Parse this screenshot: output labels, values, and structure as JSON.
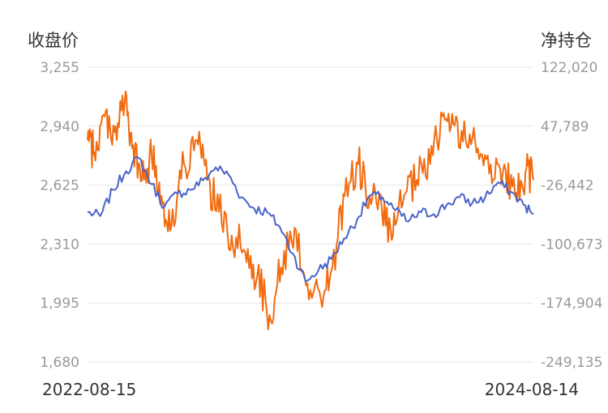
{
  "chart_data": {
    "type": "line",
    "left_axis_title": "收盘价",
    "right_axis_title": "净持仓",
    "x_range": [
      "2022-08-15",
      "2024-08-14"
    ],
    "y_left_ticks": [
      "3,255",
      "2,940",
      "2,625",
      "2,310",
      "1,995",
      "1,680"
    ],
    "y_left_range": [
      1680,
      3255
    ],
    "y_right_ticks": [
      "122,020",
      "47,789",
      "-26,442",
      "-100,673",
      "-174,904",
      "-249,135"
    ],
    "y_right_range": [
      -249135,
      122020
    ],
    "grid": true,
    "colors": {
      "close": "#4a63c8",
      "net_position": "#f26b0f",
      "grid": "#e6e6e6",
      "tick": "#999999"
    },
    "series": [
      {
        "key": "close",
        "axis": "left",
        "anchors": [
          [
            "2022-08-15",
            2480
          ],
          [
            "2022-09-05",
            2460
          ],
          [
            "2022-09-26",
            2600
          ],
          [
            "2022-10-17",
            2700
          ],
          [
            "2022-11-07",
            2770
          ],
          [
            "2022-11-28",
            2630
          ],
          [
            "2022-12-19",
            2510
          ],
          [
            "2023-01-09",
            2580
          ],
          [
            "2023-01-30",
            2600
          ],
          [
            "2023-02-20",
            2650
          ],
          [
            "2023-03-13",
            2720
          ],
          [
            "2023-04-03",
            2680
          ],
          [
            "2023-04-24",
            2560
          ],
          [
            "2023-05-15",
            2500
          ],
          [
            "2023-06-05",
            2480
          ],
          [
            "2023-06-26",
            2400
          ],
          [
            "2023-07-17",
            2260
          ],
          [
            "2023-08-07",
            2110
          ],
          [
            "2023-08-28",
            2170
          ],
          [
            "2023-09-18",
            2230
          ],
          [
            "2023-10-09",
            2340
          ],
          [
            "2023-10-30",
            2440
          ],
          [
            "2023-11-20",
            2570
          ],
          [
            "2023-12-11",
            2560
          ],
          [
            "2024-01-01",
            2490
          ],
          [
            "2024-01-22",
            2430
          ],
          [
            "2024-02-12",
            2480
          ],
          [
            "2024-03-04",
            2470
          ],
          [
            "2024-03-25",
            2520
          ],
          [
            "2024-04-15",
            2560
          ],
          [
            "2024-05-06",
            2530
          ],
          [
            "2024-05-27",
            2560
          ],
          [
            "2024-06-17",
            2640
          ],
          [
            "2024-07-08",
            2590
          ],
          [
            "2024-07-29",
            2520
          ],
          [
            "2024-08-14",
            2470
          ]
        ]
      },
      {
        "key": "net_position",
        "axis": "right",
        "anchors": [
          [
            "2022-08-15",
            30000
          ],
          [
            "2022-08-26",
            15000
          ],
          [
            "2022-09-12",
            60000
          ],
          [
            "2022-09-28",
            40000
          ],
          [
            "2022-10-15",
            80000
          ],
          [
            "2022-10-27",
            20000
          ],
          [
            "2022-11-12",
            -20000
          ],
          [
            "2022-11-28",
            10000
          ],
          [
            "2022-12-14",
            -40000
          ],
          [
            "2022-12-30",
            -80000
          ],
          [
            "2023-01-20",
            0
          ],
          [
            "2023-02-10",
            30000
          ],
          [
            "2023-02-27",
            -20000
          ],
          [
            "2023-03-18",
            -60000
          ],
          [
            "2023-04-08",
            -90000
          ],
          [
            "2023-04-30",
            -110000
          ],
          [
            "2023-05-20",
            -140000
          ],
          [
            "2023-06-09",
            -190000
          ],
          [
            "2023-06-28",
            -130000
          ],
          [
            "2023-07-20",
            -80000
          ],
          [
            "2023-08-10",
            -150000
          ],
          [
            "2023-09-01",
            -170000
          ],
          [
            "2023-09-20",
            -130000
          ],
          [
            "2023-10-10",
            -40000
          ],
          [
            "2023-11-01",
            0
          ],
          [
            "2023-11-20",
            -40000
          ],
          [
            "2023-12-10",
            -60000
          ],
          [
            "2023-12-28",
            -90000
          ],
          [
            "2024-01-15",
            -40000
          ],
          [
            "2024-02-05",
            -20000
          ],
          [
            "2024-02-27",
            0
          ],
          [
            "2024-03-18",
            60000
          ],
          [
            "2024-04-05",
            50000
          ],
          [
            "2024-04-25",
            30000
          ],
          [
            "2024-05-15",
            20000
          ],
          [
            "2024-06-05",
            0
          ],
          [
            "2024-06-25",
            -10000
          ],
          [
            "2024-07-15",
            -40000
          ],
          [
            "2024-08-01",
            -10000
          ],
          [
            "2024-08-14",
            -20000
          ]
        ]
      }
    ]
  }
}
